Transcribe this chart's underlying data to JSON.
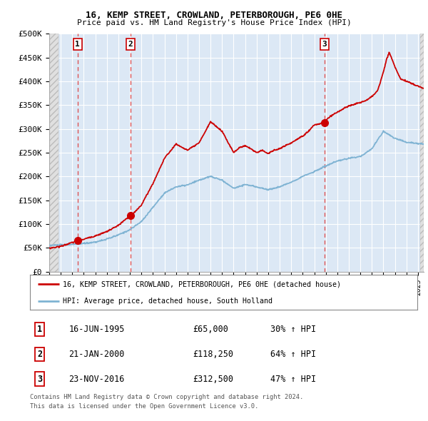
{
  "title1": "16, KEMP STREET, CROWLAND, PETERBOROUGH, PE6 0HE",
  "title2": "Price paid vs. HM Land Registry's House Price Index (HPI)",
  "ylabel_ticks": [
    "£0",
    "£50K",
    "£100K",
    "£150K",
    "£200K",
    "£250K",
    "£300K",
    "£350K",
    "£400K",
    "£450K",
    "£500K"
  ],
  "ytick_values": [
    0,
    50000,
    100000,
    150000,
    200000,
    250000,
    300000,
    350000,
    400000,
    450000,
    500000
  ],
  "transactions": [
    {
      "num": 1,
      "date_num": 1995.46,
      "price": 65000,
      "date_str": "16-JUN-1995",
      "price_str": "£65,000",
      "hpi_str": "30% ↑ HPI"
    },
    {
      "num": 2,
      "date_num": 2000.06,
      "price": 118250,
      "date_str": "21-JAN-2000",
      "price_str": "£118,250",
      "hpi_str": "64% ↑ HPI"
    },
    {
      "num": 3,
      "date_num": 2016.9,
      "price": 312500,
      "date_str": "23-NOV-2016",
      "price_str": "£312,500",
      "hpi_str": "47% ↑ HPI"
    }
  ],
  "legend_line1": "16, KEMP STREET, CROWLAND, PETERBOROUGH, PE6 0HE (detached house)",
  "legend_line2": "HPI: Average price, detached house, South Holland",
  "footer1": "Contains HM Land Registry data © Crown copyright and database right 2024.",
  "footer2": "This data is licensed under the Open Government Licence v3.0.",
  "red_color": "#cc0000",
  "blue_color": "#7fb3d3",
  "bg_main": "#dce8f5",
  "bg_hatch": "#e8e8e8",
  "xmin": 1993.0,
  "xmax": 2025.5,
  "ymin": 0,
  "ymax": 500000,
  "hpi_keypoints": [
    [
      1993,
      55000
    ],
    [
      1994,
      56000
    ],
    [
      1995,
      57000
    ],
    [
      1996,
      59000
    ],
    [
      1997,
      62000
    ],
    [
      1998,
      68000
    ],
    [
      1999,
      77000
    ],
    [
      2000,
      88000
    ],
    [
      2001,
      105000
    ],
    [
      2002,
      135000
    ],
    [
      2003,
      165000
    ],
    [
      2004,
      178000
    ],
    [
      2005,
      182000
    ],
    [
      2006,
      192000
    ],
    [
      2007,
      200000
    ],
    [
      2008,
      192000
    ],
    [
      2009,
      175000
    ],
    [
      2010,
      183000
    ],
    [
      2011,
      178000
    ],
    [
      2012,
      172000
    ],
    [
      2013,
      178000
    ],
    [
      2014,
      188000
    ],
    [
      2015,
      200000
    ],
    [
      2016,
      210000
    ],
    [
      2017,
      222000
    ],
    [
      2018,
      232000
    ],
    [
      2019,
      238000
    ],
    [
      2020,
      242000
    ],
    [
      2021,
      258000
    ],
    [
      2022,
      295000
    ],
    [
      2023,
      280000
    ],
    [
      2024,
      272000
    ],
    [
      2025.5,
      268000
    ]
  ],
  "price_keypoints": [
    [
      1993,
      49000
    ],
    [
      1994,
      53000
    ],
    [
      1995.0,
      61000
    ],
    [
      1995.46,
      65000
    ],
    [
      1996,
      68000
    ],
    [
      1997,
      75000
    ],
    [
      1998,
      84000
    ],
    [
      1999,
      97000
    ],
    [
      2000.06,
      118250
    ],
    [
      2000.3,
      122000
    ],
    [
      2001,
      140000
    ],
    [
      2002,
      185000
    ],
    [
      2003,
      238000
    ],
    [
      2004,
      268000
    ],
    [
      2005,
      255000
    ],
    [
      2006,
      270000
    ],
    [
      2007,
      315000
    ],
    [
      2008,
      295000
    ],
    [
      2009,
      250000
    ],
    [
      2009.5,
      260000
    ],
    [
      2010,
      265000
    ],
    [
      2010.5,
      258000
    ],
    [
      2011,
      250000
    ],
    [
      2011.5,
      255000
    ],
    [
      2012,
      248000
    ],
    [
      2012.5,
      255000
    ],
    [
      2013,
      258000
    ],
    [
      2013.5,
      265000
    ],
    [
      2014,
      270000
    ],
    [
      2014.5,
      278000
    ],
    [
      2015,
      285000
    ],
    [
      2015.5,
      295000
    ],
    [
      2016,
      308000
    ],
    [
      2016.85,
      312500
    ],
    [
      2016.9,
      312500
    ],
    [
      2017,
      318000
    ],
    [
      2017.5,
      328000
    ],
    [
      2018,
      335000
    ],
    [
      2018.5,
      342000
    ],
    [
      2019,
      348000
    ],
    [
      2019.5,
      352000
    ],
    [
      2020,
      355000
    ],
    [
      2020.5,
      360000
    ],
    [
      2021,
      368000
    ],
    [
      2021.5,
      380000
    ],
    [
      2022,
      420000
    ],
    [
      2022.3,
      448000
    ],
    [
      2022.5,
      460000
    ],
    [
      2022.7,
      450000
    ],
    [
      2023,
      430000
    ],
    [
      2023.3,
      415000
    ],
    [
      2023.5,
      405000
    ],
    [
      2024,
      400000
    ],
    [
      2024.5,
      395000
    ],
    [
      2025,
      390000
    ],
    [
      2025.5,
      385000
    ]
  ]
}
